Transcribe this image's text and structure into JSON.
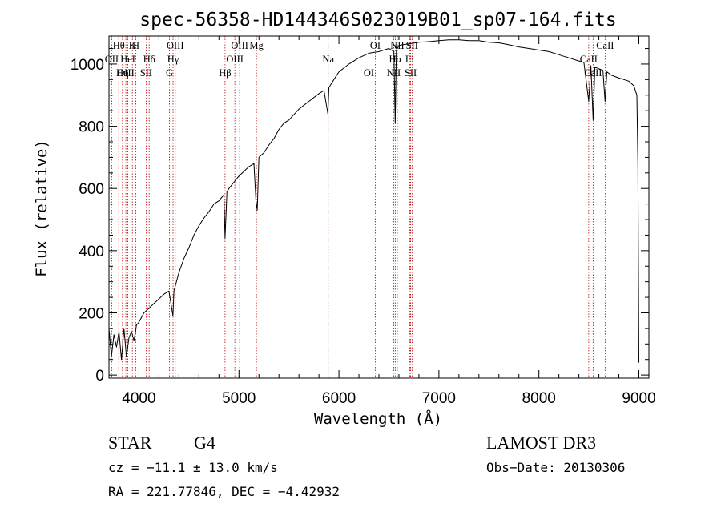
{
  "chart_data": {
    "type": "line",
    "title": "spec-56358-HD144346S023019B01_sp07-164.fits",
    "xlabel": "Wavelength (Å)",
    "ylabel": "Flux (relative)",
    "xlim": [
      3700,
      9100
    ],
    "ylim": [
      -10,
      1090
    ],
    "xticks": [
      4000,
      5000,
      6000,
      7000,
      8000,
      9000
    ],
    "yticks": [
      0,
      200,
      400,
      600,
      800,
      1000
    ],
    "grid": false,
    "series": [
      {
        "name": "flux",
        "x": [
          3700,
          3725,
          3750,
          3775,
          3800,
          3825,
          3850,
          3875,
          3900,
          3925,
          3950,
          3975,
          4000,
          4050,
          4100,
          4150,
          4200,
          4250,
          4300,
          4320,
          4340,
          4350,
          4400,
          4450,
          4500,
          4550,
          4600,
          4650,
          4700,
          4750,
          4800,
          4850,
          4861,
          4880,
          4900,
          4950,
          5000,
          5050,
          5100,
          5150,
          5170,
          5183,
          5200,
          5250,
          5300,
          5350,
          5400,
          5450,
          5500,
          5600,
          5700,
          5800,
          5850,
          5890,
          5900,
          5950,
          6000,
          6100,
          6200,
          6300,
          6400,
          6500,
          6550,
          6563,
          6575,
          6600,
          6700,
          6800,
          6900,
          7000,
          7100,
          7200,
          7300,
          7400,
          7500,
          7600,
          7700,
          7800,
          7900,
          8000,
          8100,
          8200,
          8300,
          8400,
          8450,
          8498,
          8520,
          8542,
          8560,
          8600,
          8640,
          8662,
          8680,
          8720,
          8760,
          8800,
          8850,
          8900,
          8950,
          8980,
          8990,
          9000
        ],
        "values": [
          150,
          60,
          130,
          90,
          140,
          50,
          150,
          60,
          120,
          140,
          110,
          160,
          170,
          200,
          215,
          230,
          245,
          260,
          270,
          230,
          190,
          270,
          330,
          375,
          410,
          450,
          480,
          505,
          525,
          550,
          560,
          580,
          440,
          590,
          600,
          620,
          640,
          655,
          670,
          680,
          560,
          530,
          700,
          715,
          740,
          760,
          790,
          810,
          820,
          855,
          880,
          905,
          915,
          840,
          925,
          950,
          975,
          1000,
          1020,
          1035,
          1040,
          1050,
          1040,
          810,
          1045,
          1060,
          1065,
          1070,
          1072,
          1075,
          1078,
          1078,
          1075,
          1075,
          1070,
          1068,
          1062,
          1055,
          1050,
          1045,
          1040,
          1030,
          1020,
          1010,
          1005,
          880,
          995,
          820,
          990,
          985,
          980,
          880,
          975,
          965,
          960,
          955,
          950,
          945,
          930,
          900,
          680,
          40
        ]
      }
    ],
    "lines_upper": [
      {
        "label": "Hθ",
        "x": 3798
      },
      {
        "label": "OII",
        "x": 3727
      },
      {
        "label": "OIII",
        "x": 3869
      },
      {
        "label": "K",
        "x": 3934
      },
      {
        "label": "HeI",
        "x": 3889
      },
      {
        "label": "Hη",
        "x": 3835
      },
      {
        "label": "H",
        "x": 3969
      },
      {
        "label": "Hδ",
        "x": 4102
      },
      {
        "label": "SII",
        "x": 4072
      },
      {
        "label": "OIII",
        "x": 4363
      },
      {
        "label": "Hγ",
        "x": 4341
      },
      {
        "label": "G",
        "x": 4305
      },
      {
        "label": "OIII",
        "x": 5007
      },
      {
        "label": "OIII",
        "x": 4959
      },
      {
        "label": "Hβ",
        "x": 4861
      },
      {
        "label": "Mg",
        "x": 5175
      },
      {
        "label": "Na",
        "x": 5893
      },
      {
        "label": "OI",
        "x": 6300
      },
      {
        "label": "OI",
        "x": 6364
      },
      {
        "label": "Hα",
        "x": 6563
      },
      {
        "label": "SII",
        "x": 6717
      },
      {
        "label": "NII",
        "x": 6584
      },
      {
        "label": "Li",
        "x": 6708
      },
      {
        "label": "NII",
        "x": 6548
      },
      {
        "label": "SII",
        "x": 6731
      },
      {
        "label": "CaII",
        "x": 8498
      },
      {
        "label": "CaII",
        "x": 8542
      },
      {
        "label": "CaII",
        "x": 8662
      }
    ]
  },
  "info": {
    "object_class": "STAR",
    "subclass": "G4",
    "survey": "LAMOST DR3",
    "cz_line": "cz = −11.1 ± 13.0 km/s",
    "obs_date": "Obs−Date: 20130306",
    "radec_line": "RA = 221.77846, DEC =  −4.42932"
  }
}
